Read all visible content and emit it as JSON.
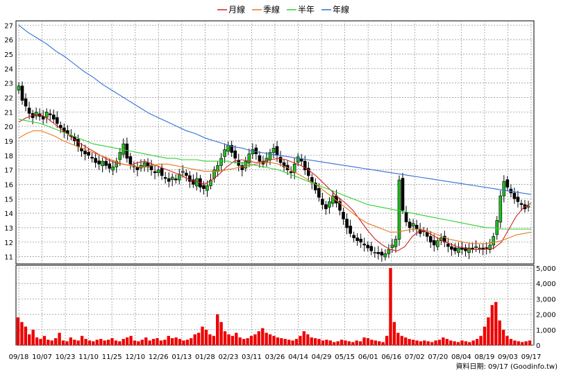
{
  "legend": [
    {
      "label": "月線",
      "color": "#d62020"
    },
    {
      "label": "季線",
      "color": "#e8781e"
    },
    {
      "label": "半年",
      "color": "#2fd02f"
    },
    {
      "label": "年線",
      "color": "#2f6fd6"
    }
  ],
  "source_text": "資料日期: 09/17  (Goodinfo.tw)",
  "colors": {
    "up": "#22bb22",
    "down": "#000000",
    "volume": "#ee0000",
    "grid": "#999999"
  },
  "chart_data": [
    {
      "type": "candlestick",
      "name": "price",
      "ylim": [
        10.5,
        27.3
      ],
      "yticks": [
        "11",
        "12",
        "13",
        "14",
        "15",
        "16",
        "17",
        "18",
        "19",
        "20",
        "21",
        "22",
        "23",
        "24",
        "25",
        "26",
        "27"
      ],
      "grid": true,
      "legend_position": "top-center",
      "xlabels": [
        "09/18",
        "10/07",
        "10/23",
        "11/10",
        "11/25",
        "12/10",
        "12/26",
        "01/13",
        "01/28",
        "02/23",
        "03/11",
        "03/26",
        "04/14",
        "04/29",
        "05/15",
        "06/01",
        "06/16",
        "07/02",
        "07/20",
        "08/04",
        "08/19",
        "09/03",
        "09/17"
      ],
      "ohlc_close": [
        22.8,
        21.8,
        21.4,
        20.9,
        20.6,
        21.0,
        20.7,
        20.5,
        21.0,
        20.8,
        20.5,
        20.2,
        19.9,
        19.6,
        19.5,
        19.3,
        19.0,
        18.6,
        18.3,
        18.1,
        18.0,
        17.8,
        17.5,
        17.4,
        17.6,
        17.3,
        17.1,
        17.2,
        17.6,
        18.2,
        18.8,
        17.8,
        17.4,
        17.2,
        17.0,
        17.3,
        17.5,
        17.2,
        17.0,
        16.8,
        17.0,
        16.6,
        16.4,
        16.2,
        16.5,
        16.3,
        16.7,
        16.9,
        16.6,
        16.2,
        16.0,
        16.4,
        15.8,
        15.7,
        15.9,
        16.3,
        17.0,
        17.3,
        17.8,
        18.4,
        18.7,
        18.2,
        17.8,
        17.3,
        17.0,
        17.6,
        18.1,
        18.4,
        18.1,
        17.6,
        17.4,
        17.8,
        18.2,
        18.5,
        18.0,
        17.5,
        17.2,
        17.0,
        16.8,
        17.4,
        17.9,
        17.6,
        17.0,
        16.6,
        16.1,
        15.6,
        15.1,
        14.6,
        14.3,
        14.8,
        15.2,
        14.7,
        14.2,
        13.6,
        13.0,
        12.6,
        12.3,
        12.1,
        12.0,
        11.8,
        11.6,
        11.4,
        11.3,
        11.2,
        11.1,
        11.2,
        11.5,
        11.8,
        12.2,
        16.3,
        14.2,
        13.4,
        13.0,
        13.3,
        12.9,
        12.6,
        12.8,
        12.4,
        12.0,
        11.8,
        12.1,
        12.3,
        12.0,
        11.7,
        11.5,
        11.4,
        11.6,
        11.5,
        11.4,
        11.6,
        11.5,
        11.7,
        11.6,
        11.5,
        11.6,
        11.8,
        12.4,
        13.5,
        15.2,
        16.2,
        15.8,
        15.4,
        15.0,
        14.8,
        14.6,
        14.3,
        14.5
      ],
      "series": [
        {
          "name": "月線",
          "values": [
            20.3,
            20.6,
            20.8,
            20.8,
            20.5,
            20.1,
            19.7,
            19.3,
            18.9,
            18.6,
            18.3,
            18.0,
            17.7,
            17.5,
            17.4,
            17.3,
            17.5,
            17.6,
            17.4,
            17.2,
            17.0,
            16.8,
            16.6,
            16.3,
            16.2,
            16.0,
            16.3,
            16.7,
            17.2,
            17.6,
            17.7,
            17.6,
            17.5,
            17.6,
            17.7,
            17.8,
            17.7,
            17.5,
            17.3,
            17.0,
            16.6,
            16.1,
            15.6,
            15.1,
            14.7,
            14.2,
            13.5,
            12.8,
            12.2,
            11.8,
            11.5,
            11.4,
            11.7,
            12.4,
            12.8,
            12.7,
            12.4,
            12.1,
            11.9,
            11.7,
            11.6,
            11.5,
            11.5,
            11.5,
            11.6,
            12.0,
            12.9,
            13.8,
            14.4,
            14.7
          ]
        },
        {
          "name": "季線",
          "values": [
            19.2,
            19.5,
            19.7,
            19.7,
            19.5,
            19.3,
            19.0,
            18.8,
            18.6,
            18.4,
            18.2,
            18.0,
            17.8,
            17.6,
            17.4,
            17.3,
            17.2,
            17.2,
            17.3,
            17.4,
            17.4,
            17.3,
            17.2,
            17.1,
            17.0,
            16.9,
            16.9,
            16.9,
            17.0,
            17.1,
            17.2,
            17.3,
            17.4,
            17.5,
            17.5,
            17.4,
            17.2,
            16.9,
            16.6,
            16.3,
            16.0,
            15.6,
            15.2,
            14.8,
            14.4,
            14.0,
            13.6,
            13.3,
            13.1,
            12.9,
            12.7,
            12.7,
            12.8,
            12.9,
            12.9,
            12.8,
            12.6,
            12.4,
            12.2,
            12.1,
            12.0,
            11.9,
            11.9,
            11.9,
            12.0,
            12.1,
            12.3,
            12.5,
            12.6,
            12.7
          ]
        },
        {
          "name": "半年",
          "values": [
            20.5,
            20.4,
            20.3,
            20.2,
            20.0,
            19.8,
            19.6,
            19.4,
            19.2,
            19.0,
            18.8,
            18.7,
            18.6,
            18.5,
            18.4,
            18.3,
            18.2,
            18.1,
            18.0,
            17.9,
            17.8,
            17.8,
            17.7,
            17.7,
            17.7,
            17.6,
            17.6,
            17.6,
            17.6,
            17.5,
            17.5,
            17.4,
            17.3,
            17.2,
            17.1,
            17.0,
            16.8,
            16.6,
            16.4,
            16.2,
            16.0,
            15.8,
            15.6,
            15.4,
            15.2,
            15.0,
            14.8,
            14.6,
            14.5,
            14.4,
            14.3,
            14.2,
            14.1,
            14.0,
            13.9,
            13.8,
            13.7,
            13.6,
            13.5,
            13.4,
            13.3,
            13.2,
            13.1,
            13.0,
            13.0,
            12.9,
            12.9,
            12.9,
            12.9,
            12.9
          ]
        },
        {
          "name": "年線",
          "values": [
            27.0,
            26.5,
            26.1,
            25.7,
            25.2,
            24.8,
            24.3,
            23.8,
            23.4,
            22.9,
            22.5,
            22.1,
            21.7,
            21.3,
            20.9,
            20.6,
            20.3,
            20.0,
            19.7,
            19.5,
            19.2,
            19.0,
            18.8,
            18.6,
            18.5,
            18.3,
            18.2,
            18.1,
            18.0,
            17.9,
            17.8,
            17.7,
            17.6,
            17.5,
            17.4,
            17.3,
            17.2,
            17.1,
            17.0,
            16.9,
            16.8,
            16.7,
            16.6,
            16.5,
            16.4,
            16.3,
            16.2,
            16.1,
            16.0,
            15.9,
            15.8,
            15.7,
            15.6,
            15.5,
            15.4,
            15.3
          ]
        }
      ]
    },
    {
      "type": "bar",
      "name": "volume",
      "ylim": [
        0,
        5000
      ],
      "yticks": [
        "0",
        "1,000",
        "2,000",
        "3,000",
        "4,000",
        "5,000"
      ],
      "grid": true,
      "values": [
        1800,
        1500,
        1200,
        700,
        1000,
        500,
        400,
        600,
        350,
        300,
        450,
        800,
        300,
        250,
        500,
        350,
        300,
        600,
        400,
        300,
        250,
        350,
        400,
        300,
        350,
        450,
        300,
        250,
        400,
        500,
        600,
        300,
        250,
        350,
        500,
        300,
        400,
        450,
        300,
        350,
        600,
        450,
        500,
        400,
        300,
        350,
        450,
        700,
        800,
        1200,
        1000,
        700,
        600,
        2000,
        1500,
        900,
        700,
        600,
        800,
        500,
        400,
        450,
        600,
        700,
        900,
        1100,
        800,
        700,
        600,
        500,
        450,
        400,
        350,
        300,
        400,
        600,
        900,
        700,
        500,
        450,
        400,
        300,
        350,
        300,
        200,
        250,
        350,
        300,
        250,
        200,
        300,
        250,
        500,
        450,
        350,
        300,
        250,
        200,
        600,
        5000,
        1500,
        800,
        600,
        500,
        400,
        350,
        300,
        250,
        300,
        250,
        200,
        300,
        350,
        500,
        400,
        300,
        250,
        200,
        300,
        250,
        200,
        300,
        400,
        600,
        1200,
        1800,
        2600,
        2800,
        1600,
        1000,
        600,
        400,
        300,
        250,
        200,
        250,
        300
      ]
    }
  ]
}
